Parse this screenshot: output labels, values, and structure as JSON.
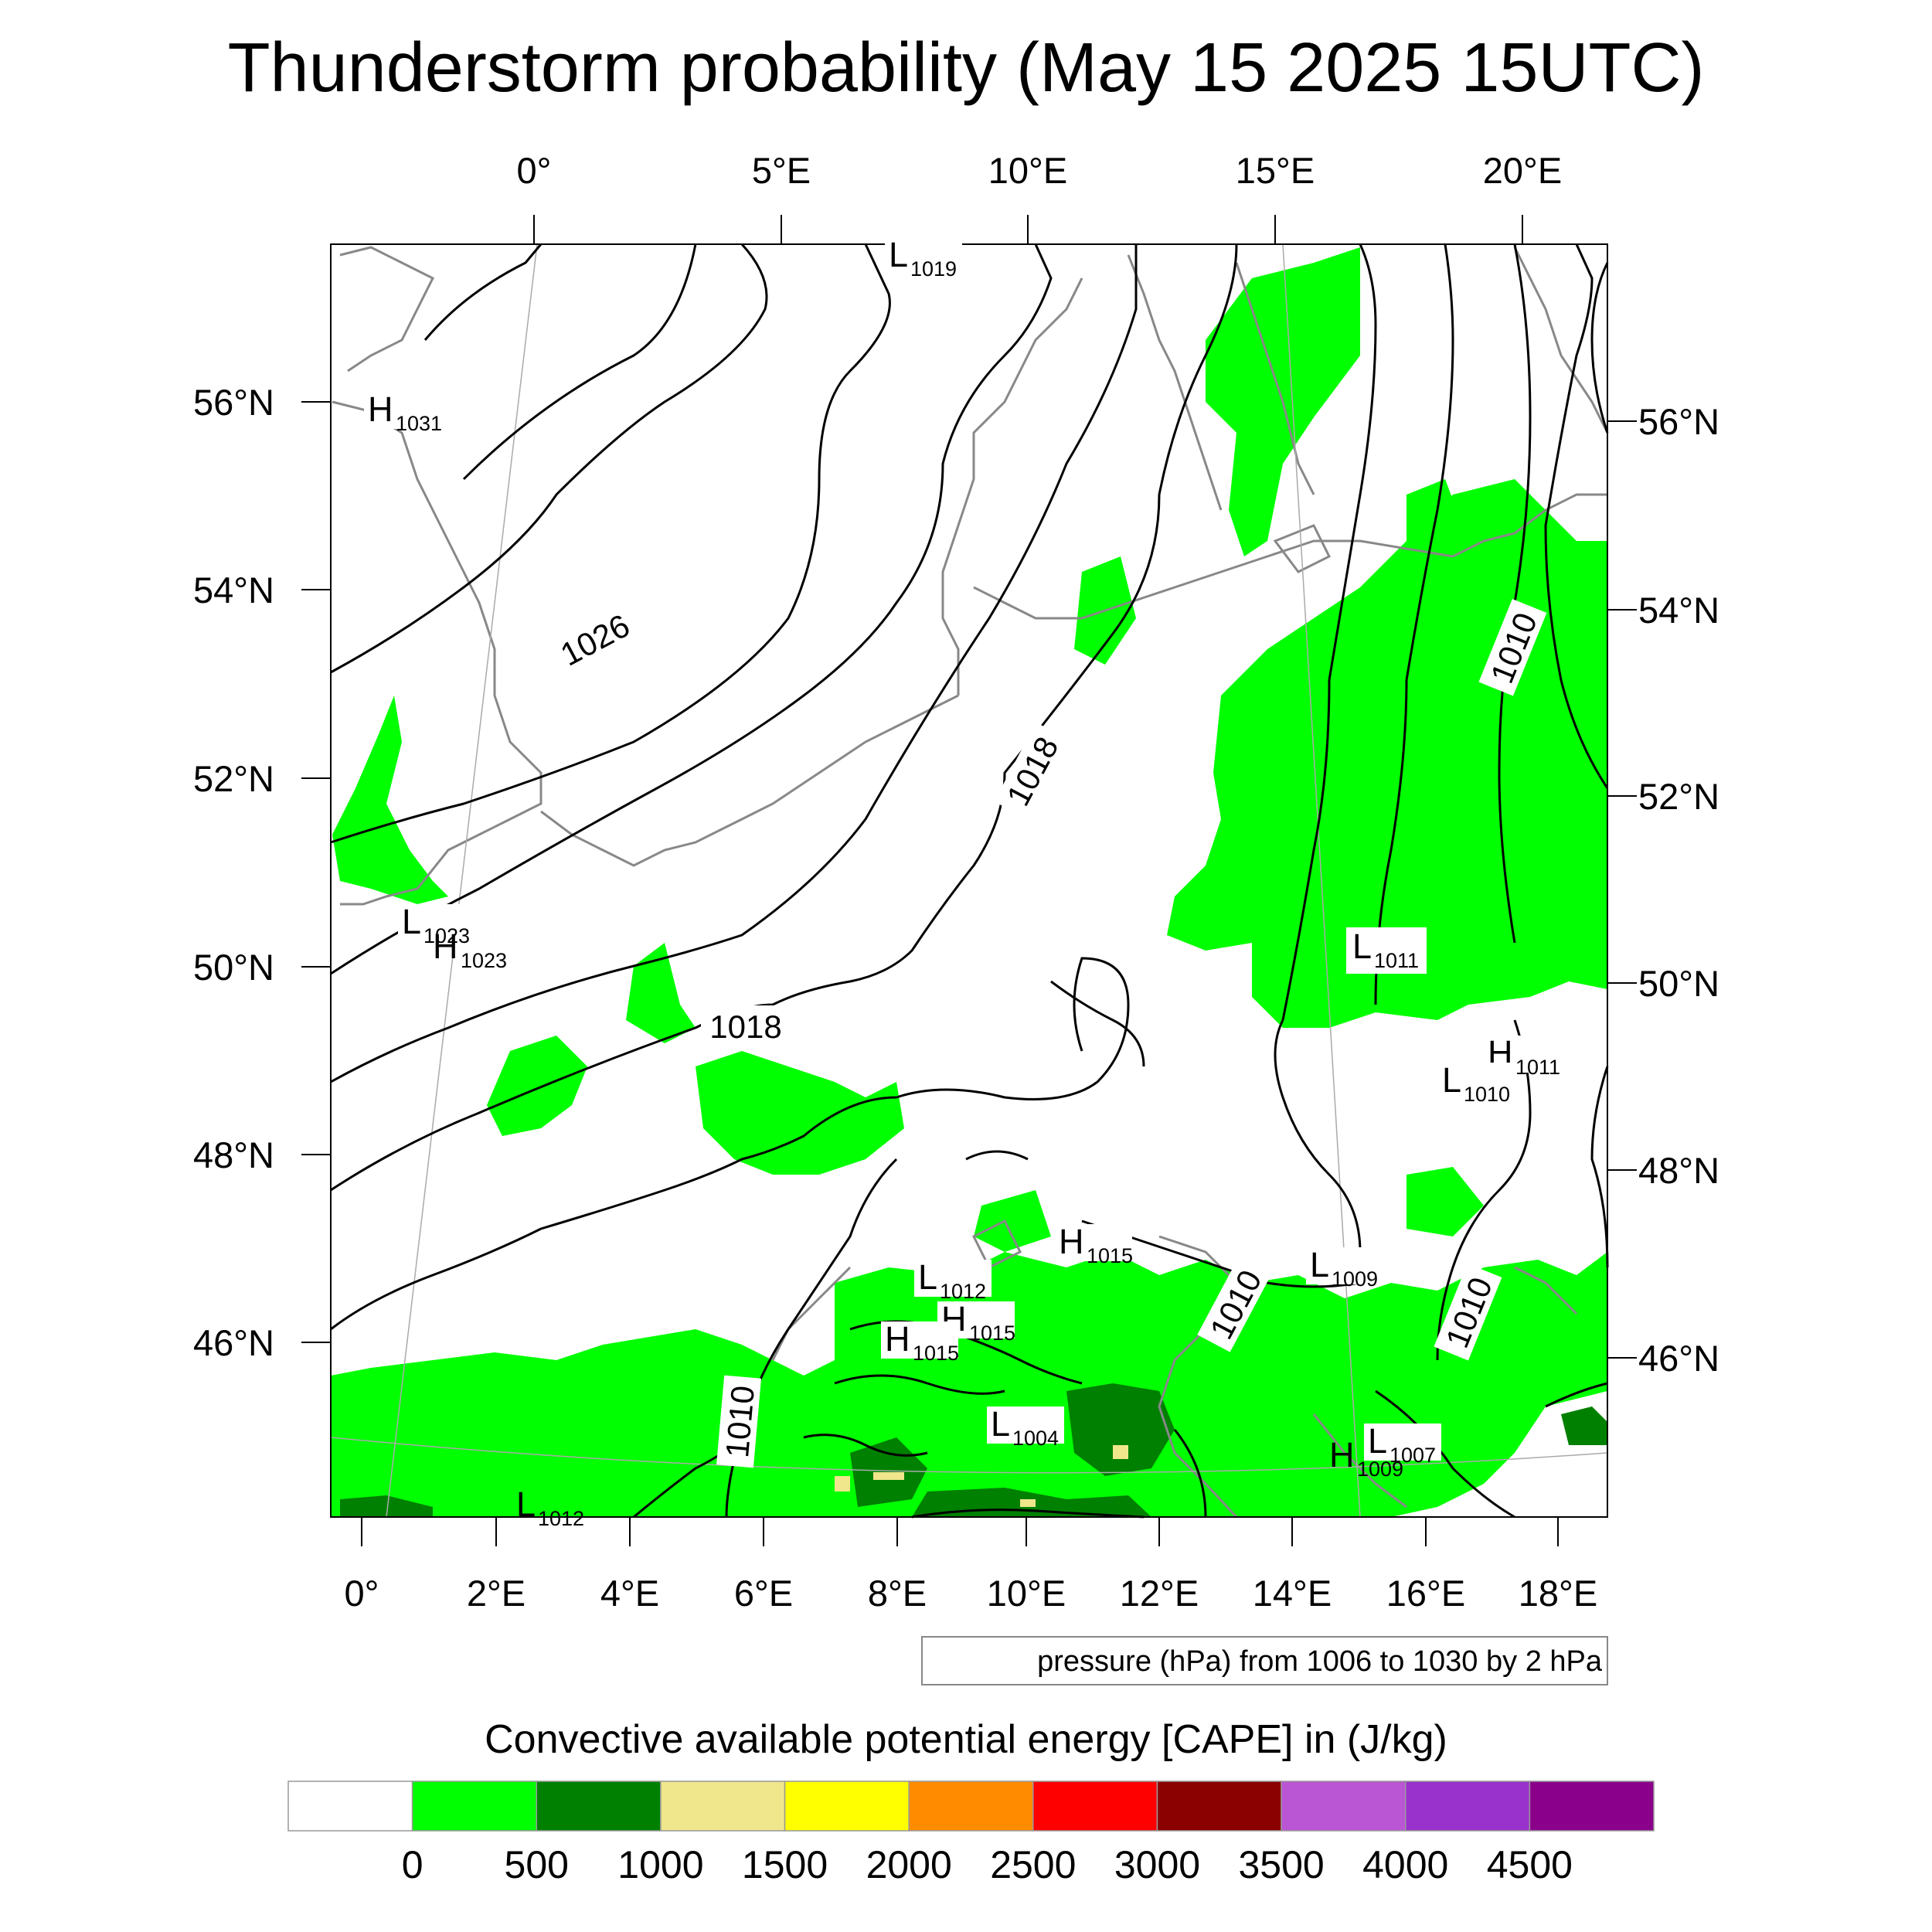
{
  "title": "Thunderstorm probability (May 15 2025 15UTC)",
  "top_lon_ticks": [
    "0°",
    "5°E",
    "10°E",
    "15°E",
    "20°E"
  ],
  "bottom_lon_ticks": [
    "0°",
    "2°E",
    "4°E",
    "6°E",
    "8°E",
    "10°E",
    "12°E",
    "14°E",
    "16°E",
    "18°E"
  ],
  "left_lat_ticks": [
    "56°N",
    "54°N",
    "52°N",
    "50°N",
    "48°N",
    "46°N"
  ],
  "right_lat_ticks": [
    "56°N",
    "54°N",
    "52°N",
    "50°N",
    "48°N",
    "46°N"
  ],
  "pressure_centers": [
    {
      "letter": "L",
      "value": "1019"
    },
    {
      "letter": "H",
      "value": "1031"
    },
    {
      "letter": "L",
      "value": "1023"
    },
    {
      "letter": "H",
      "value": "1023"
    },
    {
      "letter": "L",
      "value": "1011"
    },
    {
      "letter": "H",
      "value": "1011"
    },
    {
      "letter": "L",
      "value": "1010"
    },
    {
      "letter": "H",
      "value": "1015"
    },
    {
      "letter": "L",
      "value": "1012"
    },
    {
      "letter": "H",
      "value": "1015"
    },
    {
      "letter": "H",
      "value": "1015"
    },
    {
      "letter": "L",
      "value": "1009"
    },
    {
      "letter": "L",
      "value": "1004"
    },
    {
      "letter": "H",
      "value": "1009"
    },
    {
      "letter": "L",
      "value": "1007"
    },
    {
      "letter": "L",
      "value": "1012"
    }
  ],
  "isobar_labels": [
    "1026",
    "1018",
    "1018",
    "1010",
    "1010",
    "1010",
    "1010"
  ],
  "contour_note": "pressure (hPa) from 1006 to 1030 by 2 hPa",
  "colorbar": {
    "title": "Convective available potential energy [CAPE] in (J/kg)",
    "colors": [
      "#ffffff",
      "#00ff00",
      "#008000",
      "#f0e68c",
      "#ffff00",
      "#ff8c00",
      "#ff0000",
      "#8b0000",
      "#ba55d3",
      "#9932cc",
      "#8b008b"
    ],
    "labels": [
      "0",
      "500",
      "1000",
      "1500",
      "2000",
      "2500",
      "3000",
      "3500",
      "4000",
      "4500"
    ]
  }
}
